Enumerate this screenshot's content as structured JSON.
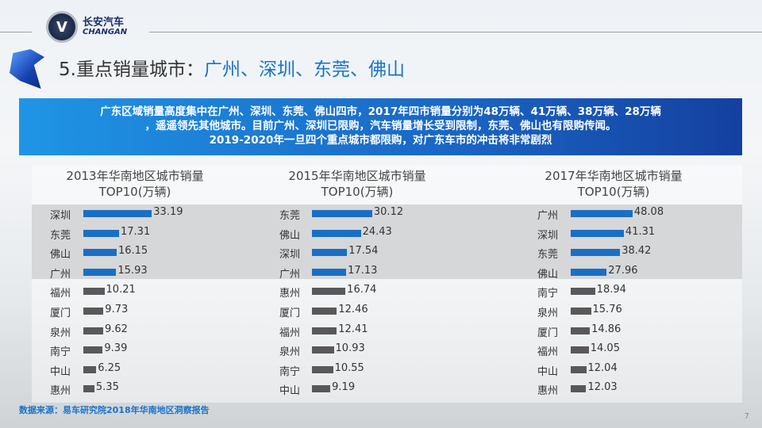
{
  "logo": {
    "cn": "长安汽车",
    "en": "CHANGAN"
  },
  "title": {
    "prefix": "5.重点销量城市：",
    "highlight": "广州、深圳、东莞、佛山"
  },
  "banner": {
    "lines": [
      "广东区域销量高度集中在广州、深圳、东莞、佛山四市，2017年四市销量分别为48万辆、41万辆、38万辆、28万辆",
      "，遥遥领先其他城市。目前广州、深圳已限购，汽车销量增长受到限制，东莞、佛山也有限购传闻。",
      "2019-2020年一旦四个重点城市都限购，对广东车市的冲击将非常剧烈"
    ]
  },
  "colors": {
    "highlight_bar": "#1a6fc4",
    "other_bar": "#595959"
  },
  "chart_data": [
    {
      "type": "bar",
      "orientation": "horizontal",
      "title_line1": "2013年华南地区城市销量",
      "title_line2": "TOP10(万辆)",
      "categories": [
        "深圳",
        "东莞",
        "佛山",
        "广州",
        "福州",
        "厦门",
        "泉州",
        "南宁",
        "中山",
        "惠州"
      ],
      "values": [
        33.19,
        17.31,
        16.15,
        15.93,
        10.21,
        9.73,
        9.62,
        9.39,
        6.25,
        5.35
      ],
      "labels": [
        "33.19",
        "17.31",
        "16.15",
        "15.93",
        "10.21",
        "9.73",
        "9.62",
        "9.39",
        "6.25",
        "5.35"
      ],
      "highlighted_count": 4
    },
    {
      "type": "bar",
      "orientation": "horizontal",
      "title_line1": "2015年华南地区城市销量",
      "title_line2": "TOP10(万辆)",
      "categories": [
        "东莞",
        "佛山",
        "深圳",
        "广州",
        "惠州",
        "厦门",
        "福州",
        "泉州",
        "南宁",
        "中山"
      ],
      "values": [
        30.12,
        24.43,
        17.54,
        17.13,
        16.74,
        12.46,
        12.41,
        10.93,
        10.55,
        9.19
      ],
      "labels": [
        "30.12",
        "24.43",
        "17.54",
        "17.13",
        "16.74",
        "12.46",
        "12.41",
        "10.93",
        "10.55",
        "9.19"
      ],
      "highlighted_count": 4
    },
    {
      "type": "bar",
      "orientation": "horizontal",
      "title_line1": "2017年华南地区城市销量",
      "title_line2": "TOP10(万辆)",
      "categories": [
        "广州",
        "深圳",
        "东莞",
        "佛山",
        "南宁",
        "泉州",
        "厦门",
        "福州",
        "中山",
        "惠州"
      ],
      "values": [
        48.08,
        41.31,
        38.42,
        27.96,
        18.94,
        15.76,
        14.86,
        14.05,
        12.04,
        12.03
      ],
      "labels": [
        "48.08",
        "41.31",
        "38.42",
        "27.96",
        "18.94",
        "15.76",
        "14.86",
        "14.05",
        "12.04",
        "12.03"
      ],
      "highlighted_count": 4
    }
  ],
  "footer": {
    "source": "数据来源：易车研究院2018年华南地区洞察报告",
    "page": "7"
  }
}
